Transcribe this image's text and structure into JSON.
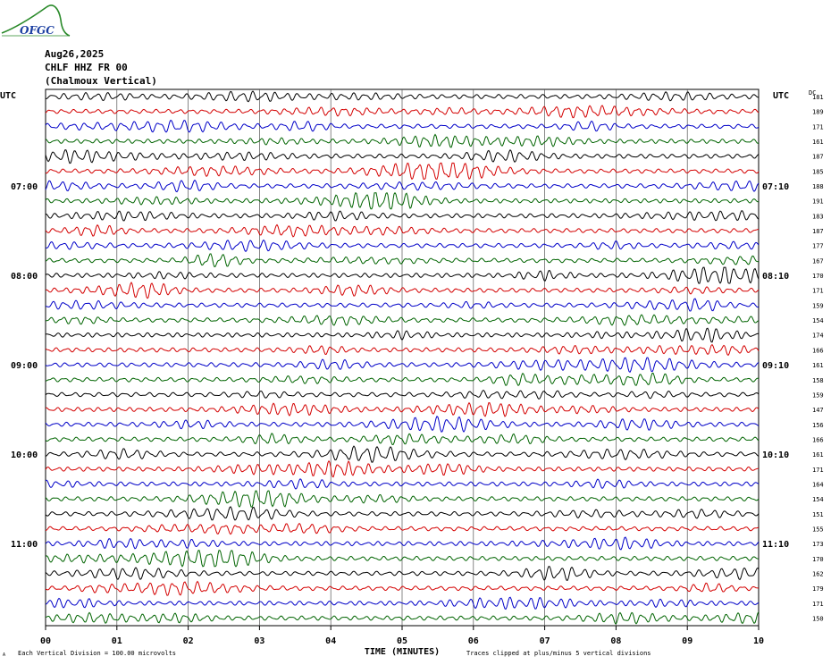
{
  "header": {
    "logo_text": "OFGC",
    "date": "Aug26,2025",
    "station": "CHLF HHZ FR 00",
    "station_desc": "(Chalmoux Vertical)"
  },
  "axes": {
    "left_unit": "UTC",
    "right_unit": "UTC",
    "dc_label": "DC",
    "x_title": "TIME (MINUTES)",
    "x_ticks": [
      "00",
      "01",
      "02",
      "03",
      "04",
      "05",
      "06",
      "07",
      "08",
      "09",
      "10"
    ],
    "footer_left": "Each Vertical Division =  100.00 microvolts",
    "footer_right": "Traces clipped at plus/minus 5 vertical divisions",
    "footer_mark": "A"
  },
  "colors": {
    "trace_cycle": [
      "#000000",
      "#d40000",
      "#0000c8",
      "#006400"
    ],
    "grid": "#000000",
    "logo": "#2a8a2a"
  },
  "chart_data": {
    "type": "helicorder",
    "title": "CHLF HHZ FR 00 (Chalmoux Vertical)",
    "xlabel": "TIME (MINUTES)",
    "xlim": [
      0,
      10
    ],
    "minutes_per_line": 10,
    "line_count": 36,
    "left_time_labels": [
      {
        "line": 6,
        "label": "07:00"
      },
      {
        "line": 12,
        "label": "08:00"
      },
      {
        "line": 18,
        "label": "09:00"
      },
      {
        "line": 24,
        "label": "10:00"
      },
      {
        "line": 30,
        "label": "11:00"
      }
    ],
    "right_time_labels": [
      {
        "line": 6,
        "label": "07:10"
      },
      {
        "line": 12,
        "label": "08:10"
      },
      {
        "line": 18,
        "label": "09:10"
      },
      {
        "line": 24,
        "label": "10:10"
      },
      {
        "line": 30,
        "label": "11:10"
      }
    ],
    "dc_offsets": [
      181,
      189,
      171,
      161,
      187,
      185,
      188,
      191,
      183,
      187,
      177,
      167,
      170,
      171,
      159,
      154,
      174,
      166,
      161,
      158,
      159,
      147,
      156,
      166,
      161,
      171,
      164,
      154,
      151,
      155,
      173,
      170,
      162,
      179,
      171,
      150
    ]
  }
}
